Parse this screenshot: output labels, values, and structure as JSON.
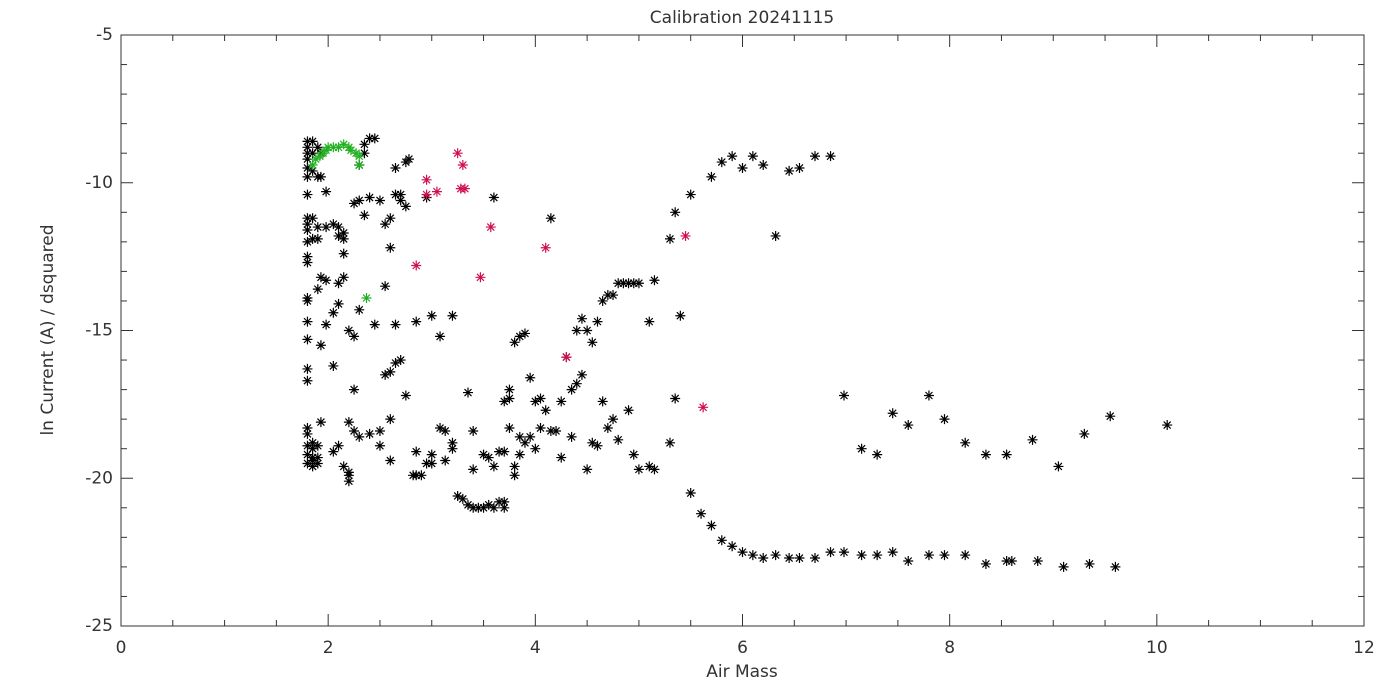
{
  "chart_data": {
    "type": "scatter",
    "title": "Calibration 20241115",
    "x_label": "Air Mass",
    "y_label": "ln Current (A) / dsquared",
    "xlim": [
      0,
      12
    ],
    "ylim": [
      -25,
      -5
    ],
    "xticks": [
      0,
      2,
      4,
      6,
      8,
      10,
      12
    ],
    "yticks": [
      -25,
      -20,
      -15,
      -10,
      -5
    ],
    "xminorticks": [
      0.5,
      1,
      1.5,
      2.5,
      3,
      3.5,
      4.5,
      5,
      5.5,
      6.5,
      7,
      7.5,
      8.5,
      9,
      9.5,
      10.5,
      11,
      11.5
    ],
    "yminorticks": [
      -24,
      -23,
      -22,
      -21,
      -19,
      -18,
      -17,
      -16,
      -14,
      -13,
      -12,
      -11,
      -9,
      -8,
      -7,
      -6
    ],
    "series": [
      {
        "color": "#000000",
        "x": [
          1.8,
          1.8,
          1.8,
          1.8,
          1.8,
          1.8,
          1.8,
          1.8,
          1.8,
          1.8,
          1.8,
          1.8,
          1.8,
          1.8,
          1.8,
          1.8,
          1.8,
          1.8,
          1.8,
          1.8,
          1.8,
          1.8,
          1.8,
          1.8,
          1.85,
          1.85,
          1.85,
          1.85,
          1.85,
          1.85,
          1.85,
          1.85,
          1.85,
          1.85,
          1.9,
          1.9,
          1.9,
          1.9,
          1.9,
          1.9,
          1.9,
          1.9,
          1.93,
          1.93,
          1.93,
          1.93,
          1.93,
          1.98,
          1.98,
          1.98,
          1.98,
          2.05,
          2.05,
          2.05,
          2.05,
          2.1,
          2.1,
          2.1,
          2.1,
          2.1,
          2.15,
          2.15,
          2.15,
          2.15,
          2.15,
          2.2,
          2.2,
          2.2,
          2.2,
          2.2,
          2.25,
          2.25,
          2.25,
          2.25,
          2.3,
          2.3,
          2.3,
          2.3,
          2.35,
          2.35,
          2.35,
          2.4,
          2.4,
          2.4,
          2.45,
          2.45,
          2.5,
          2.5,
          2.5,
          2.55,
          2.55,
          2.55,
          2.6,
          2.6,
          2.6,
          2.6,
          2.6,
          2.65,
          2.65,
          2.65,
          2.65,
          2.7,
          2.7,
          2.7,
          2.75,
          2.75,
          2.75,
          2.78,
          2.82,
          2.85,
          2.85,
          2.85,
          2.9,
          2.95,
          2.95,
          3.0,
          3.0,
          3.0,
          3.08,
          3.08,
          3.13,
          3.13,
          3.2,
          3.2,
          3.2,
          3.25,
          3.3,
          3.35,
          3.35,
          3.4,
          3.4,
          3.4,
          3.45,
          3.5,
          3.5,
          3.55,
          3.55,
          3.6,
          3.6,
          3.6,
          3.65,
          3.65,
          3.7,
          3.7,
          3.7,
          3.7,
          3.75,
          3.75,
          3.75,
          3.8,
          3.8,
          3.8,
          3.85,
          3.85,
          3.85,
          3.9,
          3.9,
          3.95,
          3.95,
          4.0,
          4.0,
          4.05,
          4.05,
          4.1,
          4.15,
          4.15,
          4.2,
          4.25,
          4.25,
          4.3,
          4.35,
          4.35,
          4.4,
          4.4,
          4.45,
          4.45,
          4.5,
          4.5,
          4.55,
          4.55,
          4.6,
          4.6,
          4.65,
          4.65,
          4.7,
          4.7,
          4.75,
          4.75,
          4.8,
          4.8,
          4.85,
          4.9,
          4.9,
          4.95,
          4.95,
          5.0,
          5.0,
          5.1,
          5.1,
          5.15,
          5.15,
          5.3,
          5.3,
          5.35,
          5.35,
          5.4,
          5.5,
          5.5,
          5.6,
          5.7,
          5.7,
          5.8,
          5.8,
          5.9,
          5.9,
          6.0,
          6.0,
          6.1,
          6.1,
          6.2,
          6.2,
          6.32,
          6.32,
          6.45,
          6.45,
          6.55,
          6.55,
          6.7,
          6.7,
          6.85,
          6.85,
          6.98,
          6.98,
          7.15,
          7.15,
          7.3,
          7.3,
          7.45,
          7.45,
          7.6,
          7.6,
          7.8,
          7.8,
          7.95,
          7.95,
          8.15,
          8.15,
          8.35,
          8.35,
          8.55,
          8.55,
          8.6,
          8.8,
          8.85,
          9.05,
          9.1,
          9.3,
          9.35,
          9.55,
          9.6,
          10.1
        ],
        "values": [
          -8.6,
          -8.8,
          -9.0,
          -9.2,
          -9.5,
          -9.8,
          -10.4,
          -11.2,
          -11.4,
          -11.6,
          -12.0,
          -12.5,
          -12.7,
          -13.9,
          -14.0,
          -14.7,
          -15.3,
          -16.3,
          -16.7,
          -18.3,
          -18.5,
          -18.9,
          -19.2,
          -19.5,
          -8.6,
          -9.0,
          -9.6,
          -11.2,
          -11.9,
          -18.8,
          -19.3,
          -19.6,
          -19.4,
          -19.0,
          -8.8,
          -9.8,
          -11.5,
          -11.9,
          -13.6,
          -19.3,
          -19.5,
          -18.9,
          -13.2,
          -15.5,
          -18.1,
          -9.0,
          -9.8,
          -10.3,
          -11.5,
          -13.3,
          -14.8,
          -16.2,
          -14.4,
          -19.1,
          -11.4,
          -11.5,
          -11.8,
          -13.4,
          -14.1,
          -18.9,
          -11.7,
          -12.4,
          -13.2,
          -19.6,
          -11.9,
          -15.0,
          -19.8,
          -18.1,
          -19.9,
          -20.1,
          -17.0,
          -15.2,
          -18.4,
          -10.7,
          -18.6,
          -14.3,
          -10.6,
          -9.4,
          -11.1,
          -9.0,
          -8.7,
          -10.5,
          -8.5,
          -18.5,
          -8.5,
          -14.8,
          -10.6,
          -18.9,
          -18.4,
          -13.5,
          -16.5,
          -11.4,
          -12.2,
          -16.4,
          -18.0,
          -11.2,
          -19.4,
          -9.5,
          -10.4,
          -14.8,
          -16.1,
          -10.4,
          -10.6,
          -16.0,
          -17.2,
          -10.8,
          -9.3,
          -9.2,
          -19.9,
          -19.1,
          -19.9,
          -14.7,
          -19.9,
          -19.5,
          -10.5,
          -14.5,
          -19.2,
          -19.5,
          -15.2,
          -18.3,
          -18.4,
          -19.4,
          -14.5,
          -18.8,
          -19.0,
          -20.6,
          -20.7,
          -17.1,
          -20.9,
          -18.4,
          -21.0,
          -19.7,
          -21.0,
          -19.2,
          -21.0,
          -19.3,
          -20.9,
          -10.5,
          -19.6,
          -21.0,
          -19.1,
          -20.8,
          -17.4,
          -21.0,
          -19.1,
          -20.8,
          -17.0,
          -17.3,
          -18.3,
          -15.4,
          -19.6,
          -19.9,
          -15.2,
          -18.6,
          -19.2,
          -15.1,
          -18.8,
          -16.6,
          -18.6,
          -17.4,
          -19.0,
          -17.3,
          -18.3,
          -17.7,
          -18.4,
          -11.2,
          -18.4,
          -19.3,
          -17.4,
          -15.9,
          -18.6,
          -17.0,
          -15.0,
          -16.8,
          -14.6,
          -16.5,
          -15.0,
          -19.7,
          -15.4,
          -18.8,
          -14.7,
          -18.9,
          -17.4,
          -14.0,
          -18.3,
          -13.8,
          -13.8,
          -18.0,
          -13.4,
          -18.7,
          -13.4,
          -13.4,
          -17.7,
          -13.4,
          -19.2,
          -13.4,
          -19.7,
          -14.7,
          -19.6,
          -13.3,
          -19.7,
          -11.9,
          -18.8,
          -17.3,
          -11.0,
          -14.5,
          -10.4,
          -20.5,
          -21.2,
          -21.6,
          -9.8,
          -9.3,
          -22.1,
          -9.1,
          -22.3,
          -9.5,
          -22.5,
          -9.1,
          -22.6,
          -9.4,
          -22.7,
          -11.8,
          -22.6,
          -9.6,
          -22.7,
          -9.5,
          -22.7,
          -9.1,
          -22.7,
          -9.1,
          -22.5,
          -17.2,
          -22.5,
          -19.0,
          -22.6,
          -19.2,
          -22.6,
          -17.8,
          -22.5,
          -18.2,
          -22.8,
          -17.2,
          -22.6,
          -18.0,
          -22.6,
          -18.8,
          -22.6,
          -19.2,
          -22.9,
          -19.2,
          -22.8,
          -22.8,
          -18.7,
          -22.8,
          -19.6,
          -23.0,
          -18.5,
          -22.9,
          -17.9,
          -23.0,
          -18.2
        ]
      },
      {
        "color": "#d0104c",
        "x": [
          2.85,
          2.95,
          2.95,
          3.05,
          3.25,
          3.28,
          3.32,
          3.3,
          3.47,
          3.57,
          4.1,
          4.3,
          5.45,
          5.62
        ],
        "values": [
          -12.8,
          -9.9,
          -10.4,
          -10.3,
          -9.0,
          -10.2,
          -10.2,
          -9.4,
          -13.2,
          -11.5,
          -12.2,
          -15.9,
          -11.8,
          -17.6
        ]
      },
      {
        "color": "#22b022",
        "x": [
          1.85,
          1.88,
          1.92,
          1.95,
          1.98,
          2.0,
          2.05,
          2.1,
          2.15,
          2.2,
          2.22,
          2.27,
          2.3,
          2.3,
          2.37
        ],
        "values": [
          -9.4,
          -9.2,
          -9.1,
          -9.0,
          -8.9,
          -8.8,
          -8.8,
          -8.8,
          -8.7,
          -8.8,
          -8.9,
          -9.0,
          -9.1,
          -9.4,
          -13.9
        ]
      }
    ]
  }
}
